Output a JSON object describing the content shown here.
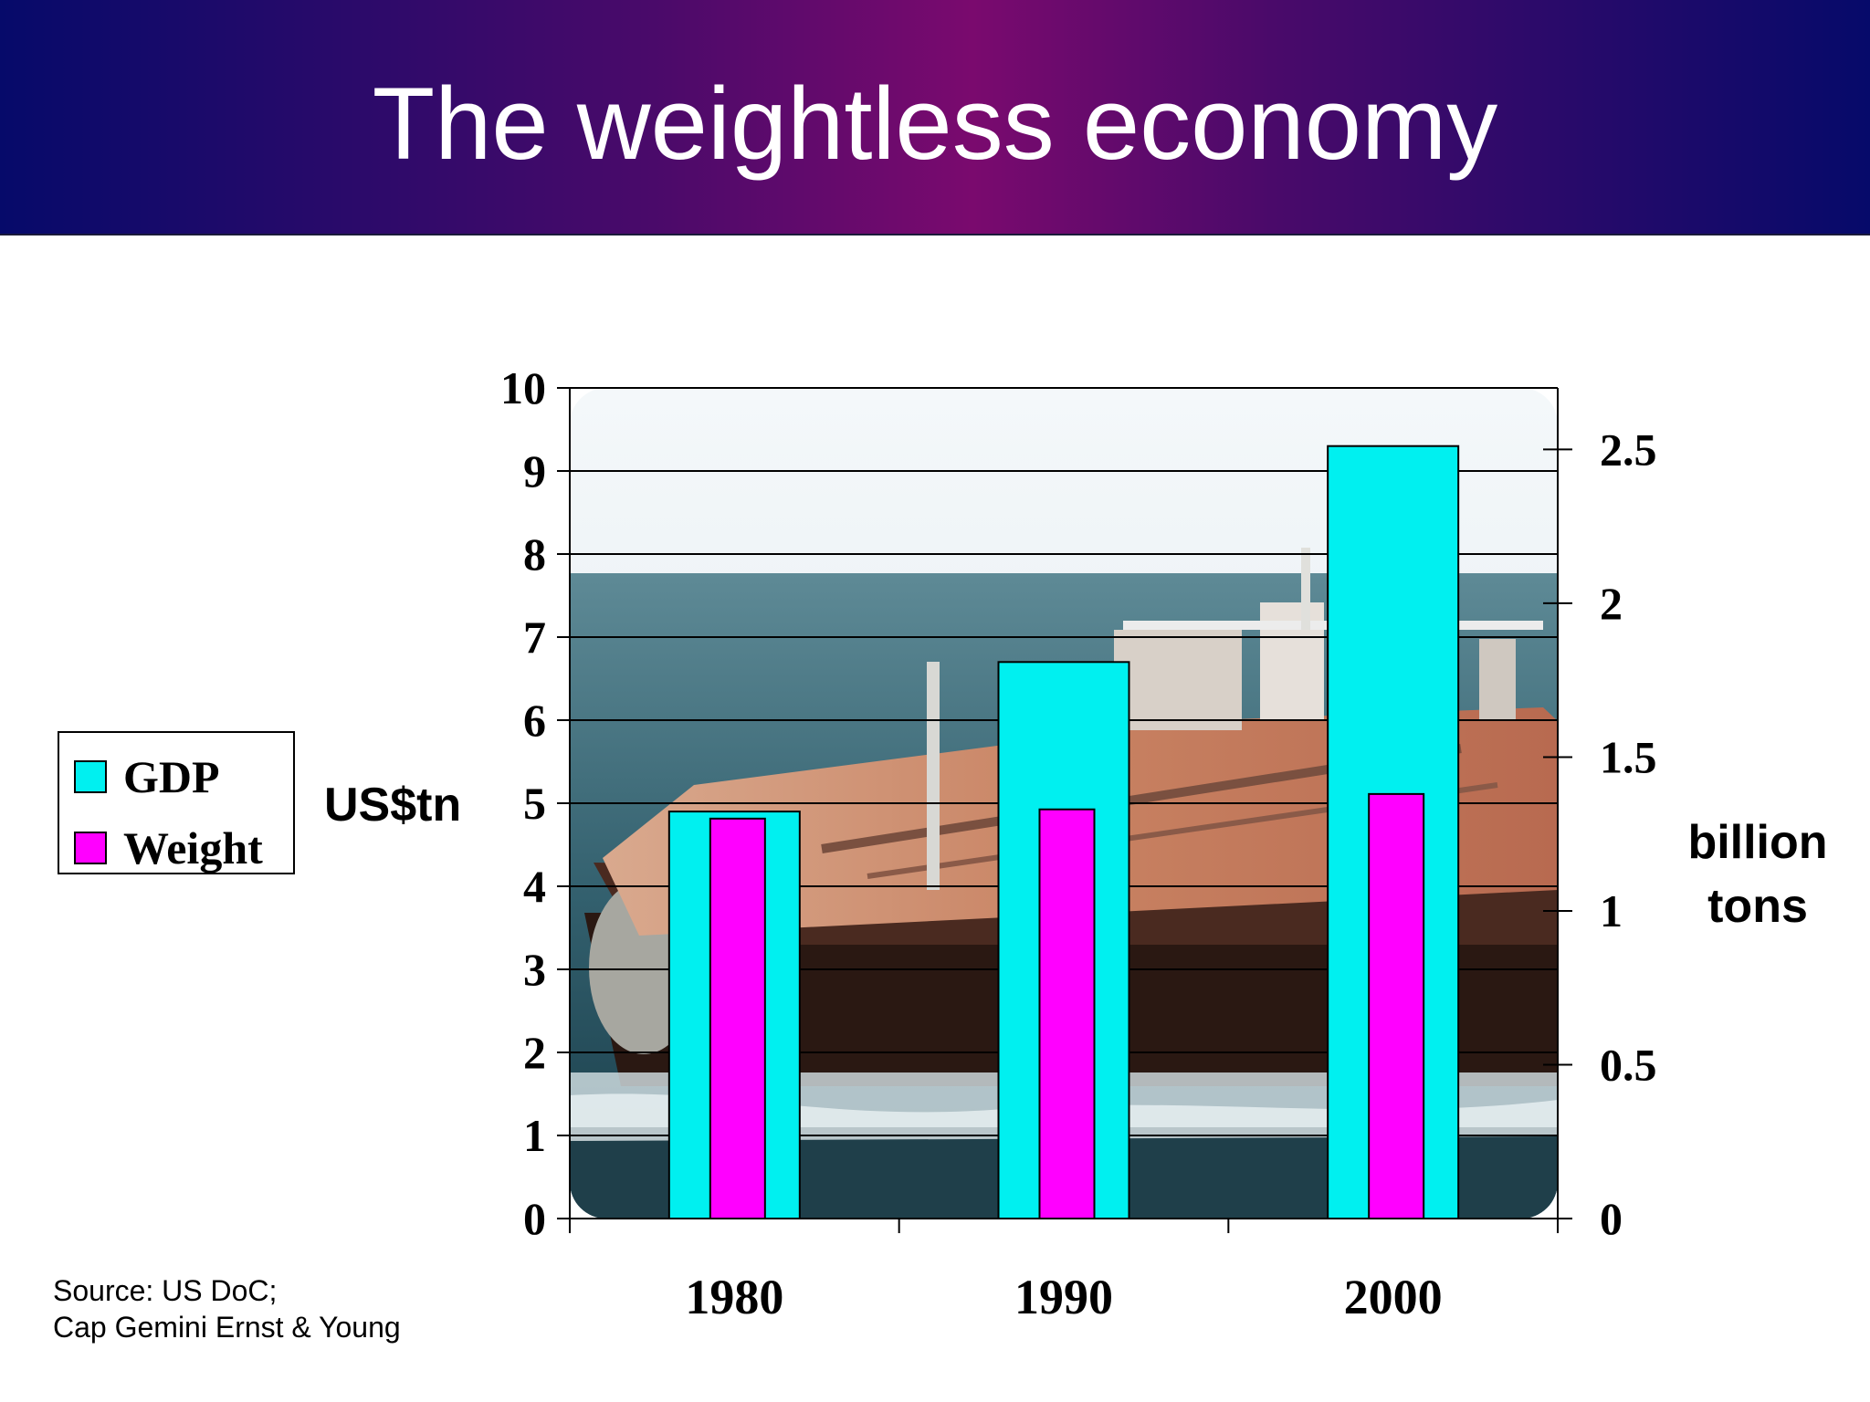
{
  "slide": {
    "title": "The weightless economy",
    "source_line1": "Source: US DoC;",
    "source_line2": "Cap Gemini Ernst & Young"
  },
  "colors": {
    "gdp": "#00f0f0",
    "weight": "#ff00ff",
    "title_bg": "#4a0a6a"
  },
  "background_image": {
    "description_icon": "oil-tanker-photo-icon"
  },
  "chart_data": {
    "type": "bar",
    "title": "The weightless economy",
    "categories": [
      "1980",
      "1990",
      "2000"
    ],
    "series": [
      {
        "name": "GDP",
        "axis": "left",
        "values": [
          4.9,
          6.7,
          9.3
        ]
      },
      {
        "name": "Weight",
        "axis": "right",
        "values": [
          1.3,
          1.33,
          1.38
        ]
      }
    ],
    "y_left": {
      "label": "US$tn",
      "min": 0,
      "max": 10,
      "ticks": [
        "0",
        "1",
        "2",
        "3",
        "4",
        "5",
        "6",
        "7",
        "8",
        "9",
        "10"
      ]
    },
    "y_right": {
      "label_line1": "billion",
      "label_line2": "tons",
      "min": 0,
      "max": 2.7,
      "ticks": [
        "0",
        "0.5",
        "1",
        "1.5",
        "2",
        "2.5"
      ]
    },
    "legend": [
      "GDP",
      "Weight"
    ],
    "grid": true
  }
}
